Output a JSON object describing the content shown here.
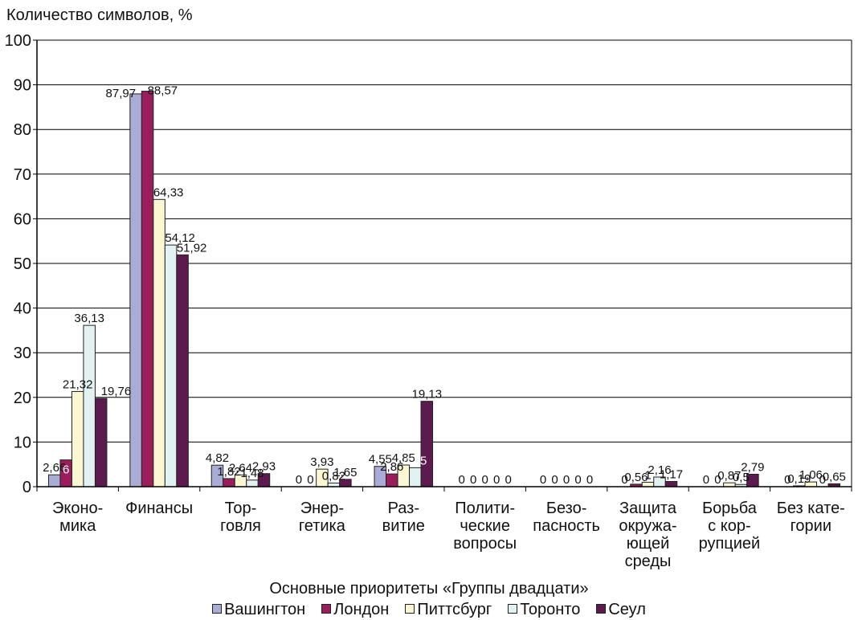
{
  "chart_data": {
    "type": "bar",
    "ylabel": "Количество символов, %",
    "xlabel": "Основные приоритеты «Группы двадцати»",
    "ylim": [
      0,
      100
    ],
    "yticks": [
      0,
      10,
      20,
      30,
      40,
      50,
      60,
      70,
      80,
      90,
      100
    ],
    "grid": true,
    "legend_position": "bottom",
    "categories": [
      [
        "Эконо-",
        "мика"
      ],
      [
        "Финансы"
      ],
      [
        "Тор-",
        "говля"
      ],
      [
        "Энер-",
        "гетика"
      ],
      [
        "Раз-",
        "витие"
      ],
      [
        "Полити-",
        "ческие",
        "вопросы"
      ],
      [
        "Безо-",
        "пасность"
      ],
      [
        "Защита",
        "окружа-",
        "ющей",
        "среды"
      ],
      [
        "Борьба",
        "с кор-",
        "рупцией"
      ],
      [
        "Без кате-",
        "гории"
      ]
    ],
    "series": [
      {
        "name": "Вашингтон",
        "color": "#a9add6",
        "values": [
          2.66,
          87.97,
          4.82,
          0,
          4.55,
          0,
          0,
          0,
          0,
          0
        ],
        "labels": [
          "2,66",
          "87,97",
          "4,82",
          "0",
          "4,55",
          "0",
          "0",
          "0",
          "0",
          "0"
        ]
      },
      {
        "name": "Лондон",
        "color": "#9b1d5b",
        "values": [
          6,
          88.57,
          1.82,
          0,
          2.86,
          0,
          0,
          0.56,
          0,
          0.19
        ],
        "labels": [
          "6",
          "88,57",
          "1,82",
          "0",
          "2,86",
          "0",
          "0",
          "0,56",
          "0",
          "0,19"
        ]
      },
      {
        "name": "Питтсбург",
        "color": "#fbf7d3",
        "values": [
          21.32,
          64.33,
          2.64,
          3.93,
          4.85,
          0,
          0,
          1,
          0.87,
          1.06
        ],
        "labels": [
          "21,32",
          "64,33",
          "2,64",
          "3,93",
          "4,85",
          "0",
          "0",
          "1",
          "0,87",
          "1,06"
        ]
      },
      {
        "name": "Торонто",
        "color": "#e2f1f1",
        "values": [
          36.13,
          54.12,
          1.48,
          0.82,
          4.25,
          0,
          0,
          2.16,
          0.5,
          0
        ],
        "labels": [
          "36,13",
          "54,12",
          "1,48",
          "0,82",
          "4,25",
          "0",
          "0",
          "2,16",
          "0,5",
          "0"
        ]
      },
      {
        "name": "Сеул",
        "color": "#5c1a4f",
        "values": [
          19.76,
          51.92,
          2.93,
          1.65,
          19.13,
          0,
          0,
          1.17,
          2.79,
          0.65
        ],
        "labels": [
          "19,76",
          "51,92",
          "2,93",
          "1,65",
          "19,13",
          "0",
          "0",
          "1,17",
          "2,79",
          "0,65"
        ]
      }
    ]
  }
}
